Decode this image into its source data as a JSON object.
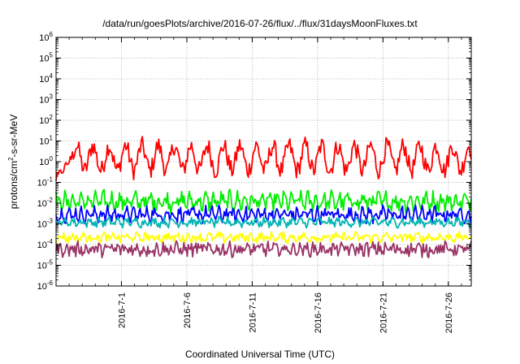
{
  "chart_data": {
    "type": "line",
    "title": "/data/run/goesPlots/archive/2016-07-26/flux/../flux/31daysMoonFluxes.txt",
    "xlabel": "Coordinated Universal Time (UTC)",
    "ylabel": "protons/cm²-s-sr-MeV",
    "yscale": "log",
    "ylim": [
      1e-06,
      1000000.0
    ],
    "y_ticks": [
      {
        "base": "10",
        "exp": "-6",
        "value": 1e-06
      },
      {
        "base": "10",
        "exp": "-5",
        "value": 1e-05
      },
      {
        "base": "10",
        "exp": "-4",
        "value": 0.0001
      },
      {
        "base": "10",
        "exp": "-3",
        "value": 0.001
      },
      {
        "base": "10",
        "exp": "-2",
        "value": 0.01
      },
      {
        "base": "10",
        "exp": "-1",
        "value": 0.1
      },
      {
        "base": "10",
        "exp": "0",
        "value": 1
      },
      {
        "base": "10",
        "exp": "1",
        "value": 10
      },
      {
        "base": "10",
        "exp": "2",
        "value": 100
      },
      {
        "base": "10",
        "exp": "3",
        "value": 1000
      },
      {
        "base": "10",
        "exp": "4",
        "value": 10000
      },
      {
        "base": "10",
        "exp": "5",
        "value": 100000
      },
      {
        "base": "10",
        "exp": "6",
        "value": 1000000
      }
    ],
    "xlim": [
      "2016-06-26",
      "2016-07-27 18:00"
    ],
    "x_ticks": [
      "2016-7-1",
      "2016-7-6",
      "2016-7-11",
      "2016-7-16",
      "2016-7-21",
      "2016-7-26"
    ],
    "grid": true,
    "series": [
      {
        "color": "#ff0000",
        "typical": 1.5,
        "noise": 0.45,
        "period_days": 1.25,
        "amplitude": 0.6,
        "start_low": 0.15
      },
      {
        "color": "#00ee00",
        "typical": 0.012,
        "noise": 0.35,
        "period_days": 0.6,
        "amplitude": 0.25
      },
      {
        "color": "#0000ff",
        "typical": 0.0028,
        "noise": 0.28,
        "period_days": 0.5,
        "amplitude": 0.2
      },
      {
        "color": "#00b4b4",
        "typical": 0.0012,
        "noise": 0.18,
        "period_days": 0.7,
        "amplitude": 0.1
      },
      {
        "color": "#ffff00",
        "typical": 0.00022,
        "noise": 0.2,
        "period_days": 0.8,
        "amplitude": 0.1
      },
      {
        "color": "#993366",
        "typical": 6e-05,
        "noise": 0.3,
        "period_days": 0.5,
        "amplitude": 0.12
      }
    ]
  }
}
